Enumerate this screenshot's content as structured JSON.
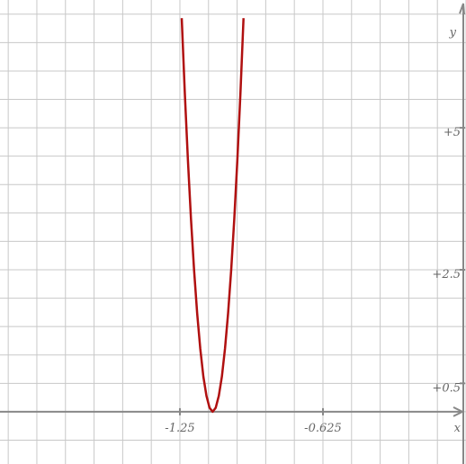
{
  "chart_data": {
    "type": "line",
    "x_label": "x",
    "y_label": "y",
    "xlim": [
      -2.036,
      0
    ],
    "ylim": [
      -0.92,
      7.25
    ],
    "xticks": [
      -1.25,
      -0.625
    ],
    "yticks": [
      {
        "value": 0.5,
        "label": "+0.5"
      },
      {
        "value": 2.5,
        "label": "+2.5"
      },
      {
        "value": 5,
        "label": "+5"
      }
    ],
    "xgrid_step": 0.125,
    "ygrid_step": 0.5,
    "grid": true,
    "series": [
      {
        "color": "#b01010",
        "x": [
          -1.242,
          -1.2285,
          -1.215,
          -1.2015,
          -1.188,
          -1.1745,
          -1.161,
          -1.1475,
          -1.134,
          -1.1205,
          -1.107,
          -1.0935,
          -1.08,
          -1.0665,
          -1.053,
          -1.0395,
          -1.026,
          -1.0125,
          -0.999,
          -0.9855,
          -0.972
        ],
        "values": [
          6.93,
          5.61,
          4.43,
          3.39,
          2.49,
          1.73,
          1.11,
          0.62,
          0.28,
          0.07,
          0,
          0.07,
          0.28,
          0.62,
          1.11,
          1.73,
          2.49,
          3.39,
          4.43,
          5.61,
          6.93
        ]
      }
    ]
  }
}
